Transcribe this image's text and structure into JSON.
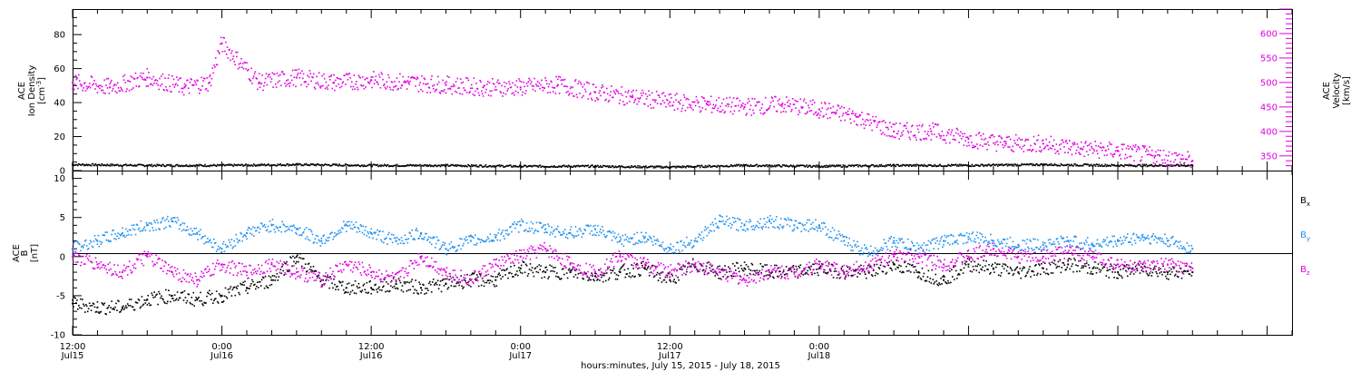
{
  "chart_data": [
    {
      "type": "scatter",
      "panel": "top",
      "ylabel_left": [
        "ACE",
        "Ion Density",
        "[cm^-3]"
      ],
      "ylabel_right": [
        "ACE",
        "Velocity",
        "[km/s]"
      ],
      "ylim_left": [
        0,
        95
      ],
      "ylim_right": [
        320,
        650
      ],
      "yticks_left": [
        "0",
        "20",
        "40",
        "60",
        "80"
      ],
      "yticks_right": [
        "350",
        "400",
        "450",
        "500",
        "550",
        "600"
      ],
      "colors": {
        "density": "#000000",
        "velocity": "#e000e0"
      },
      "series": [
        {
          "name": "Ion Density",
          "color": "#000000",
          "x_hours": [
            0,
            6,
            12,
            18,
            24,
            30,
            36,
            42,
            48,
            54,
            60,
            66,
            72,
            78,
            84,
            90
          ],
          "y": [
            3.5,
            3,
            3,
            3.5,
            3,
            3,
            2.5,
            2.5,
            2,
            3,
            2.5,
            3,
            3,
            3.5,
            3,
            3
          ]
        },
        {
          "name": "Velocity",
          "color": "#e000e0",
          "x_hours": [
            0,
            3,
            6,
            9,
            11,
            12,
            15,
            18,
            21,
            24,
            27,
            30,
            33,
            36,
            39,
            42,
            45,
            48,
            51,
            54,
            57,
            60,
            63,
            66,
            69,
            72,
            75,
            78,
            81,
            84,
            87,
            90
          ],
          "y": [
            500,
            490,
            510,
            490,
            500,
            580,
            500,
            510,
            500,
            505,
            500,
            495,
            490,
            490,
            495,
            480,
            470,
            460,
            455,
            450,
            455,
            445,
            430,
            400,
            400,
            385,
            375,
            375,
            365,
            360,
            350,
            340
          ]
        }
      ]
    },
    {
      "type": "scatter",
      "panel": "bottom",
      "ylabel": [
        "ACE",
        "B",
        "[nT]"
      ],
      "ylim": [
        -10,
        11
      ],
      "yticks": [
        "-10",
        "-5",
        "0",
        "5",
        "10"
      ],
      "legend": [
        "Bx",
        "By",
        "Bz"
      ],
      "legend_placement": "right",
      "series": [
        {
          "name": "Bx",
          "color": "#000000",
          "x_hours": [
            0,
            2,
            4,
            6,
            8,
            10,
            12,
            14,
            16,
            18,
            20,
            22,
            24,
            26,
            28,
            30,
            32,
            34,
            36,
            38,
            40,
            42,
            44,
            46,
            48,
            50,
            52,
            54,
            56,
            58,
            60,
            62,
            64,
            66,
            68,
            70,
            72,
            74,
            76,
            78,
            80,
            82,
            84,
            86,
            88,
            90
          ],
          "y": [
            -6,
            -6.5,
            -6.5,
            -5.5,
            -5,
            -5.5,
            -5,
            -4,
            -3,
            0,
            -3,
            -4,
            -4,
            -3.5,
            -4,
            -3.5,
            -3,
            -3,
            -1.5,
            -2,
            -2,
            -2.5,
            -2,
            -1.5,
            -3,
            -1,
            -2,
            -1.5,
            -2,
            -2,
            -1.5,
            -2,
            -2,
            -1,
            -2,
            -3,
            -1,
            -1.5,
            -2,
            -1.5,
            -1,
            -1.5,
            -2,
            -1.5,
            -2,
            -2
          ]
        },
        {
          "name": "By",
          "color": "#2090f0",
          "x_hours": [
            0,
            2,
            4,
            6,
            8,
            10,
            12,
            14,
            16,
            18,
            20,
            22,
            24,
            26,
            28,
            30,
            32,
            34,
            36,
            38,
            40,
            42,
            44,
            46,
            48,
            50,
            52,
            54,
            56,
            58,
            60,
            62,
            64,
            66,
            68,
            70,
            72,
            74,
            76,
            78,
            80,
            82,
            84,
            86,
            88,
            90
          ],
          "y": [
            1,
            2,
            3,
            4,
            4.5,
            3,
            1,
            3,
            4,
            3.5,
            2,
            4,
            3,
            2,
            3,
            1,
            2,
            2.5,
            4,
            3.5,
            3,
            3.5,
            2,
            2.5,
            1,
            2,
            4.5,
            4,
            4.5,
            4,
            4,
            2,
            0.5,
            2,
            1,
            2,
            2.5,
            2,
            1.5,
            1.5,
            2,
            1.5,
            2,
            2.5,
            2,
            1
          ]
        },
        {
          "name": "Bz",
          "color": "#e000e0",
          "x_hours": [
            0,
            2,
            4,
            6,
            8,
            10,
            12,
            14,
            16,
            18,
            20,
            22,
            24,
            26,
            28,
            30,
            32,
            34,
            36,
            38,
            40,
            42,
            44,
            46,
            48,
            50,
            52,
            54,
            56,
            58,
            60,
            62,
            64,
            66,
            68,
            70,
            72,
            74,
            76,
            78,
            80,
            82,
            84,
            86,
            88,
            90
          ],
          "y": [
            0,
            -1,
            -2,
            0,
            -2,
            -3,
            -1,
            -2,
            -1,
            -2,
            -3,
            -1,
            -2,
            -3,
            0,
            -2,
            -3,
            -1,
            0,
            1,
            -1,
            -2,
            0,
            -1,
            -2,
            -1,
            -2,
            -3,
            -2,
            -2,
            -1,
            -2,
            -1,
            0,
            0,
            -1,
            0,
            1,
            0,
            0,
            0.5,
            0,
            -1,
            -1.5,
            -1,
            -1.5
          ]
        }
      ]
    }
  ],
  "x_axis": {
    "range_hours": [
      0,
      98
    ],
    "major_ticks": [
      {
        "hour": 0,
        "time": "12:00",
        "date": "Jul15"
      },
      {
        "hour": 12,
        "time": "0:00",
        "date": "Jul16"
      },
      {
        "hour": 24,
        "time": "12:00",
        "date": "Jul16"
      },
      {
        "hour": 36,
        "time": "0:00",
        "date": "Jul17"
      },
      {
        "hour": 48,
        "time": "12:00",
        "date": "Jul17"
      },
      {
        "hour": 60,
        "time": "0:00",
        "date": "Jul18"
      }
    ],
    "xlabel": "hours:minutes, July 15, 2015 - July 18, 2015"
  },
  "text": {
    "ace": "ACE",
    "ion_density": "Ion Density",
    "cm_unit": "[cm",
    "cm_exp": "-3",
    "cm_close": "]",
    "velocity": "Velocity",
    "kms_unit": "[km/s]",
    "b_label": "B",
    "nt_unit": "[nT]",
    "bx_base": "B",
    "bx_sub": "x",
    "by_base": "B",
    "by_sub": "y",
    "bz_base": "B",
    "bz_sub": "z"
  }
}
